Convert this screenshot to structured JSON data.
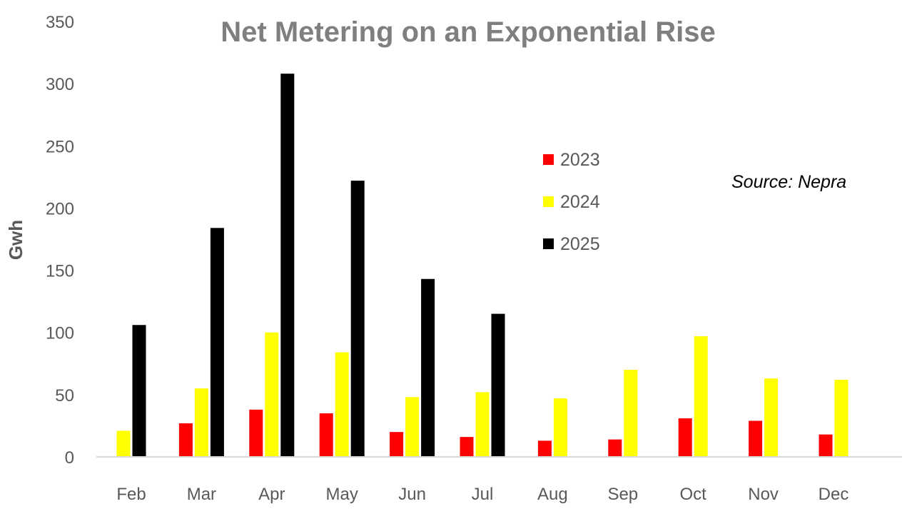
{
  "chart_data": {
    "type": "bar",
    "title": "Net Metering on an Exponential Rise",
    "ylabel": "Gwh",
    "xlabel": "",
    "ylim": [
      0,
      350
    ],
    "yticks": [
      0,
      50,
      100,
      150,
      200,
      250,
      300,
      350
    ],
    "categories": [
      "Feb",
      "Mar",
      "Apr",
      "May",
      "Jun",
      "Jul",
      "Aug",
      "Sep",
      "Oct",
      "Nov",
      "Dec"
    ],
    "series": [
      {
        "name": "2023",
        "color": "#ff0000",
        "values": [
          null,
          27,
          38,
          35,
          20,
          16,
          13,
          14,
          31,
          29,
          18
        ]
      },
      {
        "name": "2024",
        "color": "#ffff00",
        "values": [
          21,
          55,
          100,
          84,
          48,
          52,
          47,
          70,
          97,
          63,
          62
        ]
      },
      {
        "name": "2025",
        "color": "#000000",
        "values": [
          106,
          184,
          308,
          222,
          143,
          115,
          null,
          null,
          null,
          null,
          null
        ]
      }
    ],
    "legend_position": "upper-center",
    "grid": false,
    "annotation": "Source: Nepra"
  }
}
